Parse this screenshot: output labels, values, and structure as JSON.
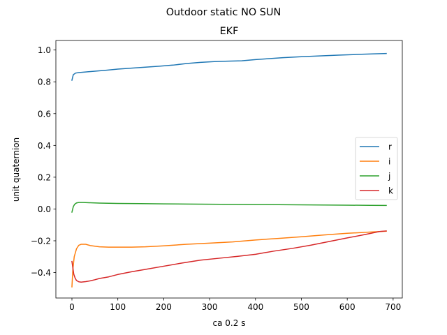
{
  "figure": {
    "suptitle": "Outdoor static NO SUN"
  },
  "chart_data": {
    "type": "line",
    "title": "EKF",
    "xlabel": "ca 0.2 s",
    "ylabel": "unit quaternion",
    "xlim": [
      -35,
      720
    ],
    "ylim": [
      -0.56,
      1.06
    ],
    "xticks": [
      0,
      100,
      200,
      300,
      400,
      500,
      600,
      700
    ],
    "yticks": [
      -0.4,
      -0.2,
      0.0,
      0.2,
      0.4,
      0.6,
      0.8,
      1.0
    ],
    "xtick_labels": [
      "0",
      "100",
      "200",
      "300",
      "400",
      "500",
      "600",
      "700"
    ],
    "ytick_labels": [
      "−0.4",
      "−0.2",
      "0.0",
      "0.2",
      "0.4",
      "0.6",
      "0.8",
      "1.0"
    ],
    "grid": false,
    "legend_position": "center right",
    "series": [
      {
        "name": "r",
        "color": "#1f77b4",
        "x": [
          0,
          3,
          8,
          15,
          30,
          50,
          75,
          100,
          130,
          160,
          190,
          220,
          250,
          280,
          310,
          340,
          370,
          400,
          430,
          460,
          500,
          540,
          580,
          620,
          660,
          685
        ],
        "y": [
          0.81,
          0.845,
          0.855,
          0.858,
          0.862,
          0.867,
          0.873,
          0.88,
          0.886,
          0.892,
          0.898,
          0.905,
          0.915,
          0.922,
          0.927,
          0.93,
          0.932,
          0.94,
          0.946,
          0.952,
          0.958,
          0.963,
          0.968,
          0.972,
          0.976,
          0.978
        ]
      },
      {
        "name": "i",
        "color": "#ff7f0e",
        "x": [
          0,
          2,
          5,
          10,
          15,
          20,
          30,
          40,
          60,
          80,
          100,
          130,
          160,
          200,
          250,
          300,
          350,
          400,
          450,
          500,
          550,
          600,
          650,
          685
        ],
        "y": [
          -0.49,
          -0.38,
          -0.3,
          -0.25,
          -0.228,
          -0.222,
          -0.222,
          -0.23,
          -0.238,
          -0.24,
          -0.24,
          -0.24,
          -0.238,
          -0.232,
          -0.222,
          -0.215,
          -0.207,
          -0.195,
          -0.185,
          -0.175,
          -0.163,
          -0.153,
          -0.145,
          -0.14
        ]
      },
      {
        "name": "j",
        "color": "#2ca02c",
        "x": [
          0,
          3,
          6,
          10,
          15,
          25,
          40,
          60,
          100,
          150,
          200,
          250,
          300,
          350,
          400,
          450,
          500,
          550,
          600,
          650,
          685
        ],
        "y": [
          -0.02,
          0.015,
          0.03,
          0.038,
          0.041,
          0.041,
          0.039,
          0.037,
          0.035,
          0.034,
          0.032,
          0.031,
          0.03,
          0.029,
          0.028,
          0.027,
          0.026,
          0.025,
          0.024,
          0.023,
          0.022
        ]
      },
      {
        "name": "k",
        "color": "#d62728",
        "x": [
          0,
          2,
          4,
          7,
          10,
          15,
          20,
          30,
          40,
          50,
          60,
          80,
          100,
          130,
          160,
          200,
          240,
          280,
          320,
          360,
          400,
          440,
          480,
          520,
          560,
          600,
          640,
          670,
          685
        ],
        "y": [
          -0.33,
          -0.37,
          -0.41,
          -0.435,
          -0.45,
          -0.458,
          -0.46,
          -0.457,
          -0.452,
          -0.445,
          -0.437,
          -0.427,
          -0.412,
          -0.395,
          -0.38,
          -0.36,
          -0.34,
          -0.322,
          -0.31,
          -0.298,
          -0.285,
          -0.265,
          -0.248,
          -0.228,
          -0.205,
          -0.182,
          -0.16,
          -0.142,
          -0.138
        ]
      }
    ]
  }
}
